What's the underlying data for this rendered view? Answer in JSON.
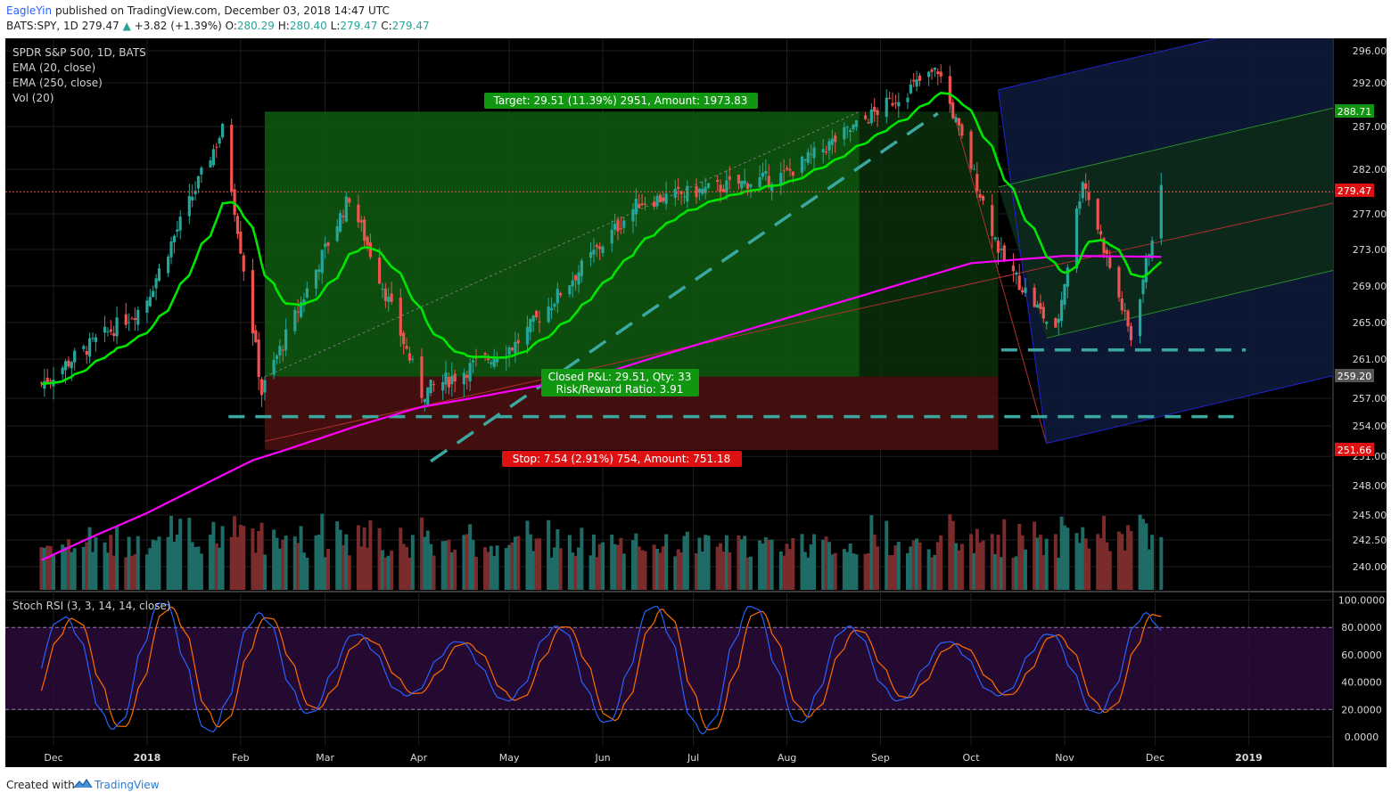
{
  "header": {
    "author": "EagleYin",
    "published_text": "published on TradingView.com, December 03, 2018 14:47 UTC",
    "symbol_line": "BATS:SPY, 1D",
    "last": "279.47",
    "change": "+3.82 (+1.39%)",
    "o_label": "O:",
    "o": "280.29",
    "h_label": "H:",
    "h": "280.40",
    "l_label": "L:",
    "l": "279.47",
    "c_label": "C:",
    "c": "279.47"
  },
  "legend": {
    "title": "SPDR S&P 500, 1D, BATS",
    "ema20": "EMA (20, close)",
    "ema250": "EMA (250, close)",
    "vol": "Vol (20)",
    "stoch": "Stoch RSI (3, 3, 14, 14, close)"
  },
  "position": {
    "target_label": "Target: 29.51 (11.39%) 2951, Amount: 1973.83",
    "stop_label": "Stop: 7.54 (2.91%) 754, Amount: 751.18",
    "pnl_label": "Closed P&L: 29.51, Qty: 33",
    "rr_label": "Risk/Reward Ratio: 3.91",
    "entry": 259.2,
    "target": 288.71,
    "stop": 251.66
  },
  "price_badges": {
    "last": "279.47",
    "target": "288.71",
    "entry": "259.20",
    "stop": "251.66"
  },
  "footer": {
    "created_with": "Created with",
    "brand": "TradingView"
  },
  "colors": {
    "background": "#000000",
    "up": "#26a69a",
    "down": "#ef5350",
    "ema20": "#00e600",
    "ema250": "#ff00ff",
    "target_zone": "#0f5a0f",
    "stop_zone": "#4a0f0f",
    "pitchfork_zone": "#0d1a3a",
    "stoch_k": "#2962ff",
    "stoch_d": "#ff6d00",
    "badge_green": "#119611",
    "badge_red": "#dd1111"
  },
  "chart_data": {
    "type": "candlestick",
    "symbol": "BATS:SPY",
    "interval": "1D",
    "price_axis_ticks": [
      296.0,
      292.0,
      287.0,
      282.0,
      277.0,
      273.0,
      269.0,
      265.0,
      261.0,
      257.0,
      254.0,
      251.0,
      248.0,
      245.0,
      242.5,
      240.0
    ],
    "stoch_axis_ticks": [
      "100.0000",
      "80.0000",
      "60.0000",
      "40.0000",
      "20.0000",
      "0.0000"
    ],
    "x_tick_labels": [
      "Dec",
      "2018",
      "Feb",
      "Mar",
      "Apr",
      "May",
      "Jun",
      "Jul",
      "Aug",
      "Sep",
      "Oct",
      "Nov",
      "Dec",
      "2019"
    ],
    "approx_close_anchors": [
      {
        "date": "2017-11-27",
        "close": 258.5
      },
      {
        "date": "2017-12-31",
        "close": 266.9
      },
      {
        "date": "2018-01-26",
        "close": 286.6
      },
      {
        "date": "2018-02-08",
        "close": 257.6
      },
      {
        "date": "2018-03-09",
        "close": 278.9
      },
      {
        "date": "2018-04-02",
        "close": 257.5
      },
      {
        "date": "2018-05-03",
        "close": 262.6
      },
      {
        "date": "2018-06-13",
        "close": 278.3
      },
      {
        "date": "2018-07-31",
        "close": 281.3
      },
      {
        "date": "2018-09-20",
        "close": 293.6
      },
      {
        "date": "2018-10-11",
        "close": 272.2
      },
      {
        "date": "2018-10-29",
        "close": 263.8
      },
      {
        "date": "2018-11-07",
        "close": 281.0
      },
      {
        "date": "2018-11-23",
        "close": 263.3
      },
      {
        "date": "2018-12-03",
        "close": 279.47
      }
    ],
    "series": [
      {
        "name": "EMA (20, close)"
      },
      {
        "name": "EMA (250, close)"
      },
      {
        "name": "Vol (20)"
      },
      {
        "name": "Stoch RSI (3, 3, 14, 14, close)"
      }
    ]
  }
}
